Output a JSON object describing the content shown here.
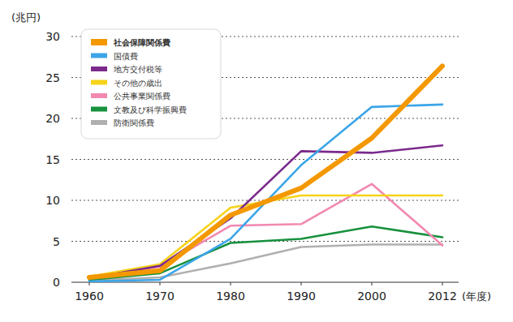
{
  "chart_data": {
    "type": "line",
    "y_label": "(兆円)",
    "x_label": "(年度)",
    "categories": [
      "1960",
      "1970",
      "1980",
      "1990",
      "2000",
      "2012"
    ],
    "series": [
      {
        "name": "社会保障関係費",
        "color": "#f39800",
        "values": [
          0.6,
          1.4,
          8.2,
          11.5,
          17.6,
          26.4
        ]
      },
      {
        "name": "国債費",
        "color": "#3ba5e8",
        "values": [
          0.1,
          0.3,
          5.3,
          14.3,
          21.4,
          21.7
        ]
      },
      {
        "name": "地方交付税等",
        "color": "#7b2a8c",
        "values": [
          0.5,
          2.0,
          7.8,
          16.0,
          15.8,
          16.7
        ]
      },
      {
        "name": "その他の歳出",
        "color": "#f6d31a",
        "values": [
          0.7,
          2.2,
          9.1,
          10.6,
          10.6,
          10.6
        ]
      },
      {
        "name": "公共事業関係費",
        "color": "#f288b0",
        "values": [
          0.6,
          1.9,
          6.9,
          7.1,
          12.0,
          4.5
        ]
      },
      {
        "name": "文教及び科学振興費",
        "color": "#17913e",
        "values": [
          0.3,
          1.1,
          4.8,
          5.3,
          6.8,
          5.5
        ]
      },
      {
        "name": "防衛関係費",
        "color": "#b0b0b0",
        "values": [
          0.2,
          0.6,
          2.3,
          4.3,
          4.6,
          4.6
        ]
      }
    ],
    "ylim": [
      0,
      30
    ],
    "yticks": [
      0,
      5,
      10,
      15,
      20,
      25,
      30
    ],
    "grid": true,
    "legend": "upper left"
  }
}
